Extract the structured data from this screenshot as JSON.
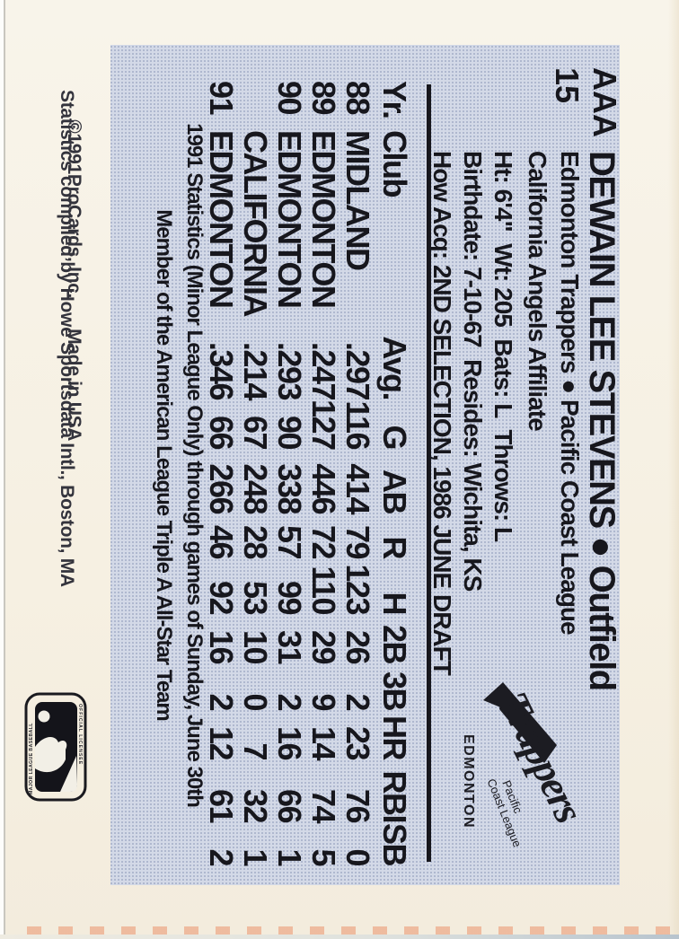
{
  "colors": {
    "panel_blue": "#d3d9e7",
    "card_cream": "#f6f0e2",
    "ink": "#17171d"
  },
  "corner": {
    "classification": "AAA",
    "card_number": "15"
  },
  "header": {
    "title": "DEWAIN LEE STEVENS ● Outfield",
    "team_line": "Edmonton Trappers ● Pacific Coast League",
    "affiliate_line": "California Angels Affiliate",
    "bio_line1": "Ht: 6'4\"  Wt: 205  Bats: L  Throws: L",
    "bio_line2": "Birthdate: 7-10-67  Resides: Wichita, KS",
    "bio_line3": "How Acq: 2ND SELECTION, 1986 JUNE DRAFT"
  },
  "stats": {
    "columns": [
      "Yr.",
      "Club",
      "Avg.",
      "G",
      "AB",
      "R",
      "H",
      "2B",
      "3B",
      "HR",
      "RBI",
      "SB"
    ],
    "rows": [
      [
        "88",
        "MIDLAND",
        ".297",
        "116",
        "414",
        "79",
        "123",
        "26",
        "2",
        "23",
        "76",
        "0"
      ],
      [
        "89",
        "EDMONTON",
        ".247",
        "127",
        "446",
        "72",
        "110",
        "29",
        "9",
        "14",
        "74",
        "5"
      ],
      [
        "90",
        "EDMONTON",
        ".293",
        "90",
        "338",
        "57",
        "99",
        "31",
        "2",
        "16",
        "66",
        "1"
      ],
      [
        "",
        "CALIFORNIA",
        ".214",
        "67",
        "248",
        "28",
        "53",
        "10",
        "0",
        "7",
        "32",
        "1"
      ],
      [
        "91",
        "EDMONTON",
        ".346",
        "66",
        "266",
        "46",
        "92",
        "16",
        "2",
        "12",
        "61",
        "2"
      ]
    ]
  },
  "notes": {
    "line1": "1991 Statistics (Minor League Only) through games of Sunday, June 30th",
    "line2": "Member of the American League Triple A All-Star Team"
  },
  "team_logo": {
    "name": "Trappers",
    "league_line1": "Pacific",
    "league_line2": "Coast League",
    "city": "EDMONTON"
  },
  "fine_print": {
    "copyright": "©1991ProCards, Inc.",
    "made_in": "Made in USA",
    "credit": "Statistics compiled by Howe Sportsdata Intl., Boston, MA"
  },
  "mlb_stamp": {
    "side_left": "MAJOR LEAGUE BASEBALL",
    "side_right": "OFFICIAL LICENSEE"
  }
}
